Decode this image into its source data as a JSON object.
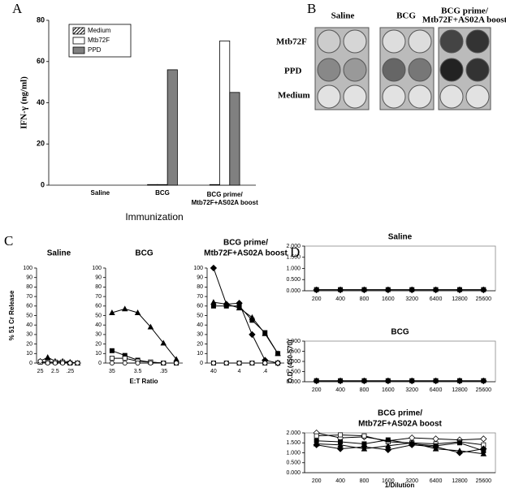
{
  "chart_data": [
    {
      "type": "bar",
      "panel": "A",
      "categories": [
        "Saline",
        "BCG",
        [
          "BCG prime/",
          "Mtb72F+AS02A boost"
        ]
      ],
      "series": [
        {
          "name": "Medium",
          "color": "#000000",
          "hatch": true,
          "values": [
            0,
            0.3,
            0.3
          ]
        },
        {
          "name": "Mtb72F",
          "color": "#ffffff",
          "values": [
            0,
            0.3,
            70
          ]
        },
        {
          "name": "PPD",
          "color": "#808080",
          "values": [
            0,
            56,
            45
          ]
        }
      ],
      "ylim": [
        0,
        80
      ],
      "yticks": [
        0,
        20,
        40,
        60,
        80
      ],
      "ylabel": "IFN-γ (ng/ml)",
      "xlabel": "Immunization",
      "legend": "upper left",
      "grid": false
    },
    {
      "type": "line",
      "panel": "C",
      "title": "Saline",
      "categories": [
        "25",
        null,
        "2.5",
        null,
        ".25",
        null
      ],
      "series": [
        {
          "marker": "triangle",
          "filled": true,
          "color": "#000000",
          "values": [
            2,
            6,
            2,
            2,
            1,
            0
          ]
        },
        {
          "marker": "square",
          "filled": false,
          "color": "#000000",
          "values": [
            1,
            1,
            1,
            1,
            0,
            0
          ]
        },
        {
          "marker": "circle",
          "filled": false,
          "color": "#000000",
          "values": [
            2,
            0,
            0,
            0,
            0,
            0
          ]
        }
      ],
      "ylim": [
        0,
        100
      ],
      "yticks": [
        0,
        10,
        20,
        30,
        40,
        50,
        60,
        70,
        80,
        90,
        100
      ],
      "ylabel": "% 51 Cr Release",
      "grid": false
    },
    {
      "type": "line",
      "title": "BCG",
      "categories": [
        "35",
        null,
        "3.5",
        null,
        ".35",
        null
      ],
      "series": [
        {
          "marker": "triangle",
          "filled": true,
          "color": "#000000",
          "values": [
            53,
            57,
            53,
            38,
            21,
            4
          ]
        },
        {
          "marker": "square",
          "filled": true,
          "color": "#000000",
          "values": [
            13,
            8,
            3,
            1,
            0,
            0
          ]
        },
        {
          "marker": "square",
          "filled": false,
          "color": "#000000",
          "values": [
            5,
            5,
            2,
            1,
            0,
            0
          ]
        },
        {
          "marker": "circle",
          "filled": false,
          "color": "#000000",
          "values": [
            0,
            0,
            0,
            0,
            0,
            0
          ]
        }
      ],
      "ylim": [
        0,
        100
      ],
      "yticks": [
        0,
        10,
        20,
        30,
        40,
        50,
        60,
        70,
        80,
        90,
        100
      ],
      "xlabel": "E:T Ratio",
      "grid": false
    },
    {
      "type": "line",
      "title": [
        "BCG prime/",
        "Mtb72F+AS02A boost"
      ],
      "categories": [
        "40",
        null,
        "4",
        null,
        ".4",
        null
      ],
      "series": [
        {
          "marker": "diamond",
          "filled": true,
          "color": "#000000",
          "values": [
            100,
            62,
            63,
            30,
            3,
            0
          ]
        },
        {
          "marker": "triangle",
          "filled": true,
          "color": "#000000",
          "values": [
            64,
            62,
            58,
            48,
            31,
            10
          ]
        },
        {
          "marker": "square",
          "filled": true,
          "color": "#000000",
          "values": [
            60,
            60,
            60,
            45,
            32,
            10
          ]
        },
        {
          "marker": "square",
          "filled": false,
          "color": "#000000",
          "values": [
            0,
            0,
            0,
            0,
            0,
            0
          ]
        },
        {
          "marker": "circle",
          "filled": false,
          "color": "#000000",
          "values": [
            0,
            0,
            0,
            0,
            0,
            0
          ]
        }
      ],
      "ylim": [
        0,
        100
      ],
      "yticks": [
        0,
        10,
        20,
        30,
        40,
        50,
        60,
        70,
        80,
        90,
        100
      ],
      "grid": false
    },
    {
      "type": "line",
      "panel": "D",
      "title": "Saline",
      "categories": [
        "200",
        "400",
        "800",
        "1600",
        "3200",
        "6400",
        "12800",
        "25600"
      ],
      "series": [
        {
          "marker": "square",
          "filled": true,
          "color": "#000000",
          "values": [
            0.05,
            0.05,
            0.05,
            0.05,
            0.05,
            0.05,
            0.05,
            0.05
          ]
        },
        {
          "marker": "diamond",
          "filled": true,
          "color": "#000000",
          "values": [
            0.04,
            0.04,
            0.04,
            0.04,
            0.04,
            0.04,
            0.04,
            0.04
          ]
        }
      ],
      "ylim": [
        0,
        2
      ],
      "yticks": [
        {
          "value": 0,
          "label": "0.000"
        },
        {
          "value": 0.5,
          "label": "0.500"
        },
        {
          "value": 1,
          "label": "1.000"
        },
        {
          "value": 1.5,
          "label": "1.500"
        },
        {
          "value": 2,
          "label": "2.000"
        }
      ],
      "grid": false
    },
    {
      "type": "line",
      "title": "BCG",
      "categories": [
        "200",
        "400",
        "800",
        "1600",
        "3200",
        "6400",
        "12800",
        "25600"
      ],
      "series": [
        {
          "marker": "square",
          "filled": true,
          "color": "#000000",
          "values": [
            0.05,
            0.05,
            0.05,
            0.05,
            0.05,
            0.05,
            0.05,
            0.05
          ]
        },
        {
          "marker": "diamond",
          "filled": true,
          "color": "#000000",
          "values": [
            0.04,
            0.04,
            0.04,
            0.04,
            0.04,
            0.04,
            0.04,
            0.04
          ]
        }
      ],
      "ylim": [
        0,
        2
      ],
      "yticks": [
        {
          "value": 0,
          "label": "0.000"
        },
        {
          "value": 0.5,
          "label": "0.500"
        },
        {
          "value": 1,
          "label": "1.000"
        },
        {
          "value": 1.5,
          "label": "1.500"
        },
        {
          "value": 2,
          "label": "2.000"
        }
      ],
      "ylabel": "O.D. (450-570)",
      "grid": false
    },
    {
      "type": "line",
      "title": [
        "BCG prime/",
        "Mtb72F+AS02A boost"
      ],
      "categories": [
        "200",
        "400",
        "800",
        "1600",
        "3200",
        "6400",
        "12800",
        "25600"
      ],
      "series": [
        {
          "marker": "diamond",
          "filled": false,
          "color": "#000000",
          "values": [
            2.0,
            1.75,
            1.8,
            1.6,
            1.75,
            1.7,
            1.65,
            1.7
          ]
        },
        {
          "marker": "square",
          "filled": false,
          "color": "#000000",
          "values": [
            1.85,
            1.9,
            1.85,
            1.55,
            1.5,
            1.45,
            1.55,
            1.4
          ]
        },
        {
          "marker": "square",
          "filled": true,
          "color": "#000000",
          "values": [
            1.6,
            1.55,
            1.45,
            1.65,
            1.45,
            1.35,
            1.5,
            1.1
          ]
        },
        {
          "marker": "triangle",
          "filled": true,
          "color": "#000000",
          "values": [
            1.45,
            1.4,
            1.2,
            1.35,
            1.5,
            1.2,
            1.1,
            0.95
          ]
        },
        {
          "marker": "diamond",
          "filled": true,
          "color": "#000000",
          "values": [
            1.4,
            1.2,
            1.3,
            1.15,
            1.4,
            1.3,
            1.0,
            1.2
          ]
        }
      ],
      "ylim": [
        0,
        2
      ],
      "yticks": [
        {
          "value": 0,
          "label": "0.000"
        },
        {
          "value": 0.5,
          "label": "0.500"
        },
        {
          "value": 1,
          "label": "1.000"
        },
        {
          "value": 1.5,
          "label": "1.500"
        },
        {
          "value": 2,
          "label": "2.000"
        }
      ],
      "xlabel": "1/Dilution",
      "grid": false
    }
  ],
  "panel_b": {
    "letter": "B",
    "columns": [
      "Saline",
      "BCG",
      [
        "BCG prime/",
        "Mtb72F+AS02A boost"
      ]
    ],
    "rows": [
      "Mtb72F",
      "PPD",
      "Medium"
    ]
  }
}
